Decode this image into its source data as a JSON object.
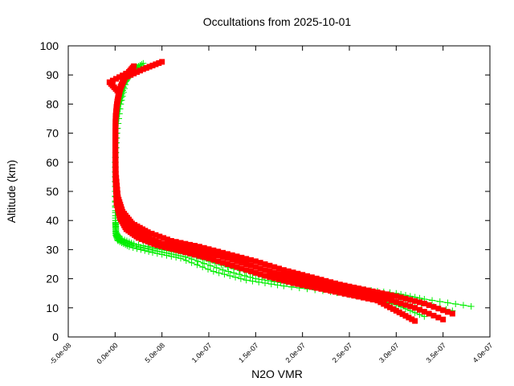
{
  "chart_data": {
    "type": "scatter",
    "title": "Occultations from 2025-10-01",
    "xlabel": "N2O VMR",
    "ylabel": "Altitude (km)",
    "xlim": [
      -5e-08,
      4e-07
    ],
    "ylim": [
      0,
      100
    ],
    "x_ticks": [
      -5e-08,
      0,
      5e-08,
      1e-07,
      1.5e-07,
      2e-07,
      2.5e-07,
      3e-07,
      3.5e-07,
      4e-07
    ],
    "x_tick_labels": [
      "-5.0e-08",
      "0.0e+00",
      "5.0e-08",
      "1.0e-07",
      "1.5e-07",
      "2.0e-07",
      "2.5e-07",
      "3.0e-07",
      "3.5e-07",
      "4.0e-07"
    ],
    "y_ticks": [
      0,
      10,
      20,
      30,
      40,
      50,
      60,
      70,
      80,
      90,
      100
    ],
    "y_tick_labels": [
      "0",
      "10",
      "20",
      "30",
      "40",
      "50",
      "60",
      "70",
      "80",
      "90",
      "100"
    ],
    "grid": false,
    "series": [
      {
        "color": "#00ee00",
        "marker": "plus",
        "profiles": [
          {
            "x": [
              3.8e-07,
              3.3e-07,
              3e-07,
              2.6e-07,
              2e-07,
              1.6e-07,
              1.2e-07,
              8e-08,
              5e-08,
              2e-08,
              5e-09,
              1e-09,
              5e-10,
              1e-10,
              3e-10,
              2e-09,
              6e-09,
              1.2e-08,
              2e-08,
              3e-08
            ],
            "y": [
              10.5,
              13,
              15,
              16.5,
              18.5,
              20.5,
              24,
              28,
              30,
              32,
              34,
              36,
              40,
              50,
              60,
              70,
              80,
              88,
              92,
              94
            ]
          },
          {
            "x": [
              3.6e-07,
              3.2e-07,
              2.9e-07,
              2.5e-07,
              1.9e-07,
              1.5e-07,
              1.15e-07,
              7.5e-08,
              4.5e-08,
              1.8e-08,
              4e-09,
              8e-10,
              4e-10,
              1e-10,
              2e-10,
              1.5e-09,
              5e-09,
              1e-08,
              1.8e-08,
              2.5e-08
            ],
            "y": [
              9,
              12,
              14.5,
              16,
              18,
              20,
              23,
              27.5,
              29.5,
              31.5,
              33.5,
              35.5,
              40,
              50,
              60,
              70,
              80,
              87,
              91,
              93
            ]
          },
          {
            "x": [
              3.3e-07,
              3e-07,
              2.7e-07,
              2.3e-07,
              1.8e-07,
              1.4e-07,
              1.05e-07,
              7e-08,
              4e-08,
              1.5e-08,
              3e-09,
              7e-10,
              3e-10,
              1e-10,
              2e-10,
              1e-09,
              4e-09,
              8e-09,
              1.5e-08,
              2.2e-08
            ],
            "y": [
              7,
              11,
              13.5,
              15.5,
              17.5,
              19.5,
              22.5,
              27,
              29,
              31,
              33,
              35,
              39,
              50,
              60,
              70,
              80,
              86,
              90,
              92
            ]
          }
        ]
      },
      {
        "color": "#ff0000",
        "marker": "square",
        "profiles": [
          {
            "x": [
              3.5e-07,
              3.2e-07,
              2.9e-07,
              2.6e-07,
              2.3e-07,
              2e-07,
              1.7e-07,
              1.4e-07,
              1.1e-07,
              8e-08,
              5e-08,
              3e-08,
              1.5e-08,
              6e-09,
              2e-09,
              5e-10,
              2e-10,
              5e-10,
              2e-09,
              5e-09,
              1e-08,
              3e-08,
              5e-08
            ],
            "y": [
              6,
              10,
              13,
              15,
              17,
              19.5,
              22,
              25,
              28,
              30,
              32,
              35,
              38,
              42,
              47,
              55,
              65,
              75,
              80,
              85,
              89,
              92,
              94.5
            ]
          },
          {
            "x": [
              3.6e-07,
              3.3e-07,
              3e-07,
              2.7e-07,
              2.4e-07,
              2.1e-07,
              1.8e-07,
              1.5e-07,
              1.2e-07,
              9e-08,
              6e-08,
              3.5e-08,
              1.8e-08,
              8e-09,
              3e-09,
              8e-10,
              3e-10,
              6e-10,
              2.5e-09,
              6e-09,
              1.2e-08,
              2e-08
            ],
            "y": [
              8,
              11.5,
              14,
              16,
              18,
              20.5,
              23,
              26,
              28.5,
              31,
              33,
              36,
              39,
              43,
              48,
              56,
              66,
              76,
              81,
              86,
              90,
              93
            ]
          },
          {
            "x": [
              3.2e-07,
              3e-07,
              2.8e-07,
              2.5e-07,
              2.2e-07,
              1.9e-07,
              1.6e-07,
              1.3e-07,
              1e-07,
              7e-08,
              4.5e-08,
              2.5e-08,
              1.2e-08,
              5e-09,
              1.5e-09,
              4e-10,
              1.5e-10,
              4e-10,
              1.5e-09,
              4e-09,
              -6e-09,
              1.5e-08
            ],
            "y": [
              5.5,
              9,
              12.5,
              14.5,
              16.5,
              18.5,
              21,
              24,
              27,
              29.5,
              31.5,
              34,
              37,
              41,
              46,
              54,
              64,
              74,
              79,
              84,
              87.5,
              91
            ]
          }
        ]
      }
    ]
  }
}
